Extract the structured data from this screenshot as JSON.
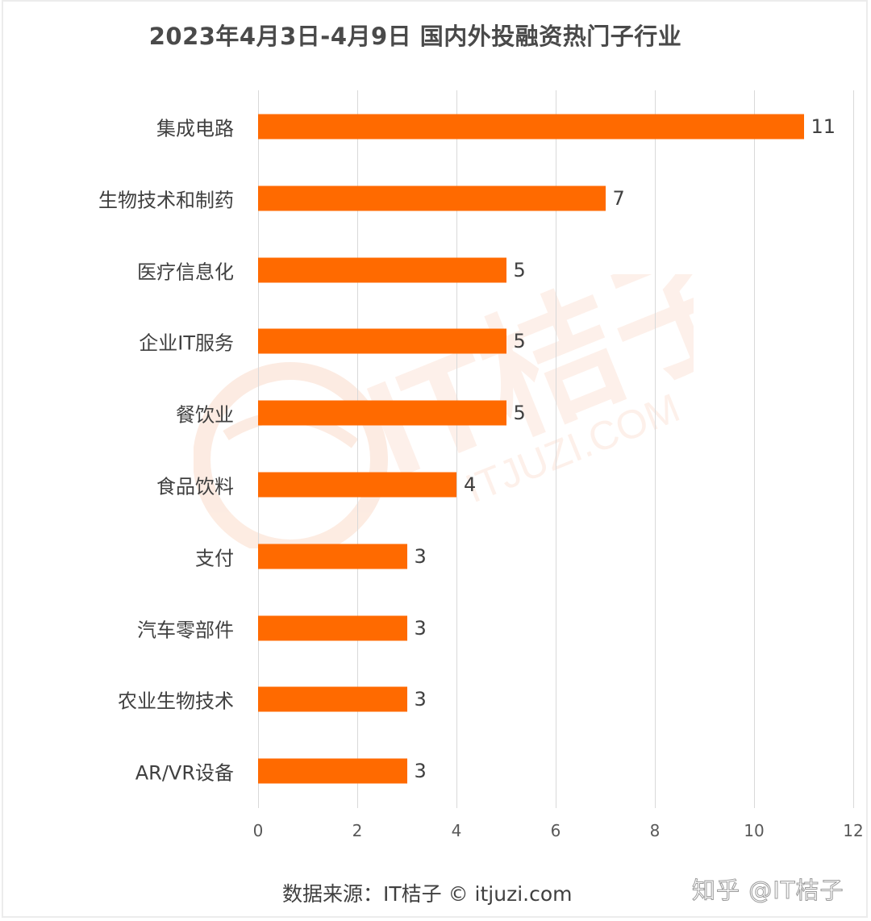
{
  "title": "2023年4月3日-4月9日 国内外投融资热门子行业",
  "chart_data": {
    "type": "bar",
    "orientation": "horizontal",
    "title": "2023年4月3日-4月9日 国内外投融资热门子行业",
    "xlabel": "",
    "ylabel": "",
    "categories": [
      "集成电路",
      "生物技术和制药",
      "医疗信息化",
      "企业IT服务",
      "餐饮业",
      "食品饮料",
      "支付",
      "汽车零部件",
      "农业生物技术",
      "AR/VR设备"
    ],
    "values": [
      11,
      7,
      5,
      5,
      5,
      4,
      3,
      3,
      3,
      3
    ],
    "value_labels": [
      "11",
      "7",
      "5",
      "5",
      "5",
      "4",
      "3",
      "3",
      "3",
      "3"
    ],
    "xlim": [
      0,
      12
    ],
    "x_ticks": [
      "0",
      "2",
      "4",
      "6",
      "8",
      "10",
      "12"
    ],
    "grid": "vertical",
    "legend": "none",
    "bar_color": "#FF6A00"
  },
  "footer": {
    "source": "数据来源：IT桔子 © itjuzi.com",
    "watermark_zhihu": "知乎 @IT桔子",
    "watermark_logo": "IT桔子",
    "watermark_url": "ITJUZI.COM"
  },
  "colors": {
    "bar": "#FF6A00",
    "text": "#404040",
    "grid": "#D9D9D9",
    "watermark": "#FDEEE6"
  }
}
